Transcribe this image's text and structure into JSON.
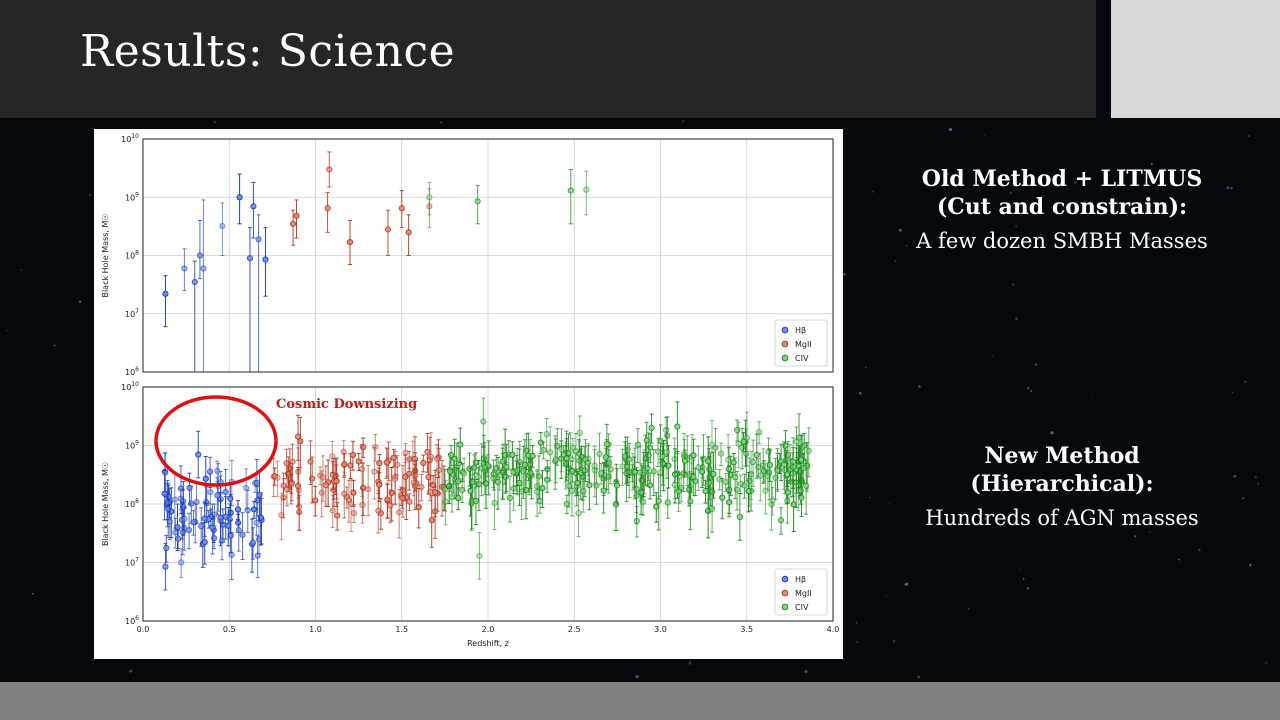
{
  "slide": {
    "title": "Results: Science",
    "old_method": {
      "heading_line1": "Old Method + LITMUS",
      "heading_line2": "(Cut and constrain):",
      "body": "A few dozen SMBH Masses"
    },
    "new_method": {
      "heading_line1": "New Method",
      "heading_line2": "(Hierarchical):",
      "body": "Hundreds of AGN masses"
    }
  },
  "colors": {
    "hbeta": "#1f3fb4",
    "mgii": "#b03a24",
    "civ": "#1f8a1f",
    "highlight": "#e01010"
  },
  "chart_data": [
    {
      "type": "scatter",
      "panel": "top",
      "ylabel": "Black Hole Mass, M☉",
      "xlim": [
        0.0,
        4.0
      ],
      "ylim_log10": [
        6,
        10
      ],
      "yscale": "log",
      "grid": true,
      "legend_position": "bottom-right",
      "series": [
        {
          "name": "Hβ",
          "points": [
            {
              "x": 0.13,
              "y": 22000000.0,
              "lo": 6000000.0,
              "hi": 45000000.0
            },
            {
              "x": 0.24,
              "y": 60000000.0,
              "lo": 25000000.0,
              "hi": 130000000.0
            },
            {
              "x": 0.3,
              "y": 35000000.0,
              "lo": 1000000.0,
              "hi": 80000000.0
            },
            {
              "x": 0.33,
              "y": 100000000.0,
              "lo": 40000000.0,
              "hi": 400000000.0
            },
            {
              "x": 0.35,
              "y": 60000000.0,
              "lo": 1000000.0,
              "hi": 900000000.0
            },
            {
              "x": 0.46,
              "y": 320000000.0,
              "lo": 100000000.0,
              "hi": 800000000.0
            },
            {
              "x": 0.56,
              "y": 1000000000.0,
              "lo": 350000000.0,
              "hi": 2500000000.0
            },
            {
              "x": 0.62,
              "y": 90000000.0,
              "lo": 1000000.0,
              "hi": 300000000.0
            },
            {
              "x": 0.64,
              "y": 700000000.0,
              "lo": 200000000.0,
              "hi": 1800000000.0
            },
            {
              "x": 0.67,
              "y": 190000000.0,
              "lo": 1000000.0,
              "hi": 500000000.0
            },
            {
              "x": 0.71,
              "y": 85000000.0,
              "lo": 20000000.0,
              "hi": 300000000.0
            }
          ]
        },
        {
          "name": "MgII",
          "points": [
            {
              "x": 0.87,
              "y": 350000000.0,
              "lo": 150000000.0,
              "hi": 600000000.0
            },
            {
              "x": 0.89,
              "y": 480000000.0,
              "lo": 200000000.0,
              "hi": 900000000.0
            },
            {
              "x": 1.07,
              "y": 650000000.0,
              "lo": 250000000.0,
              "hi": 1200000000.0
            },
            {
              "x": 1.08,
              "y": 3000000000.0,
              "lo": 1500000000.0,
              "hi": 6000000000.0
            },
            {
              "x": 1.2,
              "y": 170000000.0,
              "lo": 70000000.0,
              "hi": 400000000.0
            },
            {
              "x": 1.42,
              "y": 280000000.0,
              "lo": 100000000.0,
              "hi": 600000000.0
            },
            {
              "x": 1.5,
              "y": 650000000.0,
              "lo": 300000000.0,
              "hi": 1300000000.0
            },
            {
              "x": 1.54,
              "y": 250000000.0,
              "lo": 100000000.0,
              "hi": 500000000.0
            },
            {
              "x": 1.66,
              "y": 700000000.0,
              "lo": 300000000.0,
              "hi": 1400000000.0
            }
          ]
        },
        {
          "name": "CIV",
          "points": [
            {
              "x": 1.66,
              "y": 1000000000.0,
              "lo": 500000000.0,
              "hi": 1800000000.0
            },
            {
              "x": 1.94,
              "y": 850000000.0,
              "lo": 350000000.0,
              "hi": 1600000000.0
            },
            {
              "x": 2.48,
              "y": 1300000000.0,
              "lo": 350000000.0,
              "hi": 3000000000.0
            },
            {
              "x": 2.57,
              "y": 1350000000.0,
              "lo": 500000000.0,
              "hi": 2800000000.0
            }
          ]
        }
      ]
    },
    {
      "type": "scatter",
      "panel": "bottom",
      "xlabel": "Redshift, z",
      "ylabel": "Black Hole Mass, M☉",
      "xlim": [
        0.0,
        4.0
      ],
      "ylim_log10": [
        6,
        10
      ],
      "yscale": "log",
      "grid": true,
      "legend_position": "bottom-right",
      "annotation": "Cosmic Downsizing",
      "x_ticks": [
        "0.0",
        "0.5",
        "1.0",
        "1.5",
        "2.0",
        "2.5",
        "3.0",
        "3.5",
        "4.0"
      ],
      "series": [
        {
          "name": "Hβ",
          "z_range": [
            0.12,
            0.7
          ],
          "count": 80,
          "log_mass_mean": 7.85,
          "log_mass_spread": 0.35,
          "points": [
            {
              "x": 0.13,
              "y": 8500000.0
            },
            {
              "x": 0.32,
              "y": 700000000.0
            },
            {
              "x": 0.2,
              "y": 40000000.0
            },
            {
              "x": 0.45,
              "y": 120000000.0
            }
          ]
        },
        {
          "name": "MgII",
          "z_range": [
            0.72,
            1.75
          ],
          "count": 110,
          "log_mass_mean": 8.35,
          "log_mass_spread": 0.3
        },
        {
          "name": "CIV",
          "z_range": [
            1.75,
            3.86
          ],
          "count": 300,
          "log_mass_mean": 8.55,
          "log_mass_spread": 0.28,
          "points": [
            {
              "x": 3.72,
              "y": 380000000.0
            },
            {
              "x": 3.81,
              "y": 350000000.0
            },
            {
              "x": 3.85,
              "y": 450000000.0
            },
            {
              "x": 3.46,
              "y": 60000000.0
            },
            {
              "x": 1.95,
              "y": 13000000.0
            }
          ]
        }
      ]
    }
  ]
}
